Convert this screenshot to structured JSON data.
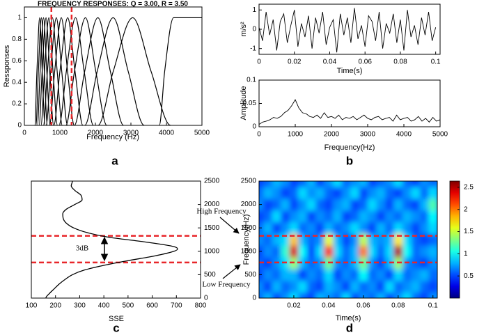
{
  "chart_data": [
    {
      "type": "line",
      "panel": "a",
      "title": "FREQUENCY RESPONSES: Q = 3.00, R = 3.50",
      "xlabel": "Frequency (Hz)",
      "ylabel": "Ressponses",
      "xlim": [
        0,
        5000
      ],
      "xticks": [
        0,
        1000,
        2000,
        3000,
        4000,
        5000
      ],
      "ylim": [
        0,
        1.1
      ],
      "yticks": [
        0,
        0.2,
        0.4,
        0.6,
        0.8,
        1
      ],
      "color": "#000000",
      "series": [
        {
          "x": [
            292,
            353,
            430,
            503,
            581
          ],
          "values": [
            0,
            0.5,
            1,
            0.5,
            0
          ]
        },
        {
          "x": [
            326,
            394,
            480,
            562,
            648
          ],
          "values": [
            0,
            0.5,
            1,
            0.5,
            0
          ]
        },
        {
          "x": [
            367,
            443,
            540,
            632,
            729
          ],
          "values": [
            0,
            0.5,
            1,
            0.5,
            0
          ]
        },
        {
          "x": [
            415,
            500,
            610,
            714,
            824
          ],
          "values": [
            0,
            0.5,
            1,
            0.5,
            0
          ]
        },
        {
          "x": [
            469,
            566,
            690,
            807,
            932
          ],
          "values": [
            0,
            0.5,
            1,
            0.5,
            0
          ]
        },
        {
          "x": [
            537,
            648,
            790,
            924,
            1067
          ],
          "values": [
            0,
            0.5,
            1,
            0.5,
            0
          ]
        },
        {
          "x": [
            612,
            738,
            900,
            1053,
            1215
          ],
          "values": [
            0,
            0.5,
            1,
            0.5,
            0
          ]
        },
        {
          "x": [
            707,
            853,
            1040,
            1217,
            1404
          ],
          "values": [
            0,
            0.5,
            1,
            0.5,
            0
          ]
        },
        {
          "x": [
            830,
            1000,
            1220,
            1427,
            1647
          ],
          "values": [
            0,
            0.5,
            1,
            0.5,
            0
          ]
        },
        {
          "x": [
            979,
            1181,
            1440,
            1685,
            1944
          ],
          "values": [
            0,
            0.5,
            1,
            0.5,
            0
          ]
        },
        {
          "x": [
            1170,
            1410,
            1720,
            2012,
            2322
          ],
          "values": [
            0,
            0.5,
            1,
            0.5,
            0
          ]
        },
        {
          "x": [
            1408,
            1697,
            2070,
            2422,
            2795
          ],
          "values": [
            0,
            0.5,
            1,
            0.5,
            0
          ]
        },
        {
          "x": [
            1700,
            2050,
            2500,
            2925,
            3375
          ],
          "values": [
            0,
            0.5,
            1,
            0.5,
            0
          ]
        },
        {
          "x": [
            2074,
            2501,
            3050,
            3569,
            4118
          ],
          "values": [
            0,
            0.5,
            1,
            0.5,
            0
          ]
        },
        {
          "x": [
            3800,
            3950,
            4200,
            5000
          ],
          "values": [
            0,
            0.5,
            1,
            1
          ]
        }
      ],
      "vlines": [
        760,
        1330
      ],
      "line_color": "#e8262a"
    },
    {
      "type": "line",
      "xlabel": "Time(s)",
      "ylabel": "m/s²",
      "xlim": [
        0,
        0.1025
      ],
      "xticks": [
        0,
        0.02,
        0.04,
        0.06,
        0.08,
        0.1
      ],
      "ylim": [
        -1.3,
        1.3
      ],
      "yticks": [
        -1,
        0,
        1
      ],
      "color": "#000000",
      "x": [
        0,
        0.002,
        0.004,
        0.006,
        0.008,
        0.01,
        0.012,
        0.014,
        0.016,
        0.018,
        0.02,
        0.022,
        0.024,
        0.026,
        0.028,
        0.03,
        0.032,
        0.034,
        0.036,
        0.038,
        0.04,
        0.042,
        0.044,
        0.046,
        0.048,
        0.05,
        0.052,
        0.054,
        0.056,
        0.058,
        0.06,
        0.062,
        0.064,
        0.066,
        0.068,
        0.07,
        0.072,
        0.074,
        0.076,
        0.078,
        0.08,
        0.082,
        0.084,
        0.086,
        0.088,
        0.09,
        0.092,
        0.094,
        0.096,
        0.098,
        0.1
      ],
      "values": [
        0.1,
        -0.6,
        0.9,
        -0.3,
        0.5,
        -1.1,
        0.4,
        0.8,
        -0.7,
        0.2,
        1.0,
        -0.9,
        0.3,
        -0.4,
        0.7,
        -1.0,
        0.6,
        -0.2,
        0.9,
        -0.8,
        0.1,
        0.5,
        -1.2,
        0.8,
        -0.3,
        0.6,
        -0.7,
        1.1,
        -0.5,
        0.2,
        -0.9,
        0.7,
        0.4,
        -0.6,
        0.9,
        -1.0,
        0.3,
        -0.2,
        0.8,
        -0.7,
        0.5,
        -1.1,
        1.0,
        -0.4,
        0.2,
        -0.8,
        0.6,
        -0.3,
        0.9,
        -0.6,
        0.1
      ]
    },
    {
      "type": "line",
      "panel": "b",
      "xlabel": "Frequency(Hz)",
      "ylabel": "Amplitude",
      "xlim": [
        0,
        5000
      ],
      "xticks": [
        0,
        1000,
        2000,
        3000,
        4000,
        5000
      ],
      "ylim": [
        0,
        0.1
      ],
      "yticks": [
        0,
        0.05,
        0.1
      ],
      "color": "#000000",
      "x": [
        0,
        100,
        200,
        300,
        400,
        500,
        600,
        700,
        800,
        900,
        1000,
        1100,
        1200,
        1300,
        1400,
        1500,
        1600,
        1700,
        1800,
        1900,
        2000,
        2100,
        2200,
        2300,
        2400,
        2500,
        2600,
        2700,
        2800,
        2900,
        3000,
        3100,
        3200,
        3300,
        3400,
        3500,
        3600,
        3700,
        3800,
        3900,
        4000,
        4100,
        4200,
        4300,
        4400,
        4500,
        4600,
        4700,
        4800,
        4900,
        5000
      ],
      "values": [
        0.005,
        0.01,
        0.012,
        0.015,
        0.02,
        0.018,
        0.022,
        0.03,
        0.035,
        0.045,
        0.058,
        0.04,
        0.03,
        0.028,
        0.022,
        0.02,
        0.025,
        0.018,
        0.03,
        0.02,
        0.022,
        0.018,
        0.025,
        0.015,
        0.02,
        0.018,
        0.022,
        0.015,
        0.02,
        0.025,
        0.018,
        0.015,
        0.02,
        0.022,
        0.015,
        0.018,
        0.02,
        0.012,
        0.025,
        0.015,
        0.018,
        0.02,
        0.012,
        0.015,
        0.022,
        0.012,
        0.018,
        0.01,
        0.02,
        0.012,
        0.015
      ]
    },
    {
      "type": "profile",
      "panel": "c",
      "xlabel": "SSE",
      "xlim": [
        100,
        800
      ],
      "xticks": [
        100,
        200,
        300,
        400,
        500,
        600,
        700,
        800
      ],
      "ylim": [
        0,
        2500
      ],
      "yticks": [
        0,
        500,
        1000,
        1500,
        2000,
        2500
      ],
      "color": "#000000",
      "y": [
        0,
        100,
        200,
        300,
        400,
        500,
        600,
        700,
        800,
        900,
        1000,
        1050,
        1100,
        1200,
        1300,
        1400,
        1500,
        1600,
        1700,
        1800,
        1900,
        2000,
        2100,
        2200,
        2300,
        2400,
        2500
      ],
      "values": [
        160,
        175,
        195,
        215,
        240,
        270,
        320,
        400,
        500,
        610,
        690,
        705,
        690,
        570,
        420,
        330,
        275,
        245,
        232,
        230,
        245,
        280,
        310,
        305,
        280,
        265,
        270
      ],
      "hlines": [
        760,
        1330
      ],
      "line_color": "#e8262a",
      "annotations": [
        "High Frequency",
        "3dB",
        "Low Frequency"
      ]
    },
    {
      "type": "heatmap",
      "panel": "d",
      "xlabel": "Time(s)",
      "ylabel": "Frequency(Hz)",
      "xlim": [
        0,
        0.1025
      ],
      "xticks": [
        0.02,
        0.04,
        0.06,
        0.08,
        0.1
      ],
      "ylim": [
        0,
        2500
      ],
      "yticks": [
        0,
        500,
        1000,
        1500,
        2000,
        2500
      ],
      "x": [
        0,
        0.005,
        0.01,
        0.015,
        0.02,
        0.025,
        0.03,
        0.035,
        0.04,
        0.045,
        0.05,
        0.055,
        0.06,
        0.065,
        0.07,
        0.075,
        0.08,
        0.085,
        0.09,
        0.095,
        0.1
      ],
      "y": [
        0,
        250,
        500,
        750,
        1000,
        1250,
        1500,
        1750,
        2000,
        2250,
        2500
      ],
      "z": [
        [
          0.6,
          0.8,
          0.5,
          0.7,
          0.9,
          0.6,
          0.5,
          0.8,
          0.7,
          0.6,
          0.9,
          0.5,
          0.7,
          0.6,
          0.8,
          0.5,
          0.7,
          0.9,
          0.6,
          0.5,
          0.7
        ],
        [
          0.7,
          0.5,
          0.8,
          0.6,
          0.7,
          0.9,
          0.6,
          0.5,
          0.8,
          0.7,
          0.5,
          0.8,
          0.6,
          0.7,
          0.5,
          0.9,
          0.6,
          0.7,
          0.8,
          0.6,
          0.5
        ],
        [
          0.5,
          0.7,
          0.6,
          0.8,
          0.8,
          0.5,
          0.7,
          0.6,
          0.9,
          0.5,
          0.7,
          0.6,
          1.0,
          0.6,
          0.7,
          0.5,
          0.9,
          0.6,
          0.7,
          0.8,
          0.6
        ],
        [
          0.6,
          0.5,
          0.7,
          0.9,
          1.4,
          0.8,
          0.6,
          0.7,
          1.3,
          0.7,
          0.6,
          0.8,
          1.3,
          0.7,
          0.5,
          0.8,
          1.4,
          0.7,
          0.6,
          0.5,
          0.7
        ],
        [
          0.5,
          0.7,
          0.6,
          1.1,
          2.4,
          1.0,
          0.5,
          0.9,
          2.2,
          0.9,
          0.6,
          0.8,
          2.0,
          0.9,
          0.6,
          0.9,
          2.5,
          1.0,
          0.6,
          0.7,
          0.8
        ],
        [
          0.7,
          0.6,
          0.8,
          0.9,
          1.8,
          0.8,
          0.6,
          0.7,
          1.6,
          0.8,
          0.5,
          0.7,
          1.5,
          0.8,
          0.7,
          0.8,
          1.7,
          0.9,
          0.6,
          0.5,
          0.6
        ],
        [
          0.6,
          0.8,
          0.5,
          0.7,
          0.9,
          0.6,
          0.7,
          0.5,
          0.8,
          0.6,
          0.7,
          0.9,
          0.7,
          0.5,
          0.8,
          0.6,
          0.9,
          0.7,
          0.5,
          0.7,
          0.9
        ],
        [
          0.5,
          0.6,
          0.9,
          0.5,
          0.7,
          0.8,
          0.5,
          0.7,
          0.6,
          0.8,
          0.5,
          0.6,
          0.8,
          0.7,
          0.5,
          0.7,
          0.6,
          0.8,
          0.7,
          0.6,
          1.0
        ],
        [
          0.7,
          0.5,
          0.6,
          0.8,
          0.5,
          0.7,
          0.9,
          0.6,
          0.5,
          0.7,
          0.8,
          0.5,
          0.6,
          0.9,
          0.7,
          0.5,
          0.8,
          0.6,
          0.5,
          0.8,
          1.2
        ],
        [
          0.6,
          0.8,
          0.7,
          0.5,
          0.6,
          0.9,
          0.7,
          0.8,
          0.6,
          0.5,
          0.7,
          0.9,
          0.5,
          0.7,
          0.8,
          0.6,
          0.5,
          0.7,
          0.9,
          0.6,
          0.9
        ],
        [
          0.5,
          0.6,
          0.8,
          0.7,
          0.5,
          0.6,
          0.8,
          0.5,
          0.7,
          0.9,
          0.6,
          0.7,
          0.8,
          0.5,
          0.6,
          0.7,
          0.9,
          0.6,
          0.5,
          0.7,
          0.6
        ]
      ],
      "zlim": [
        0,
        2.64
      ],
      "colorbar_ticks": [
        0.5,
        1,
        1.5,
        2,
        2.5
      ],
      "hlines": [
        760,
        1330
      ],
      "line_color": "#e8262a"
    }
  ]
}
